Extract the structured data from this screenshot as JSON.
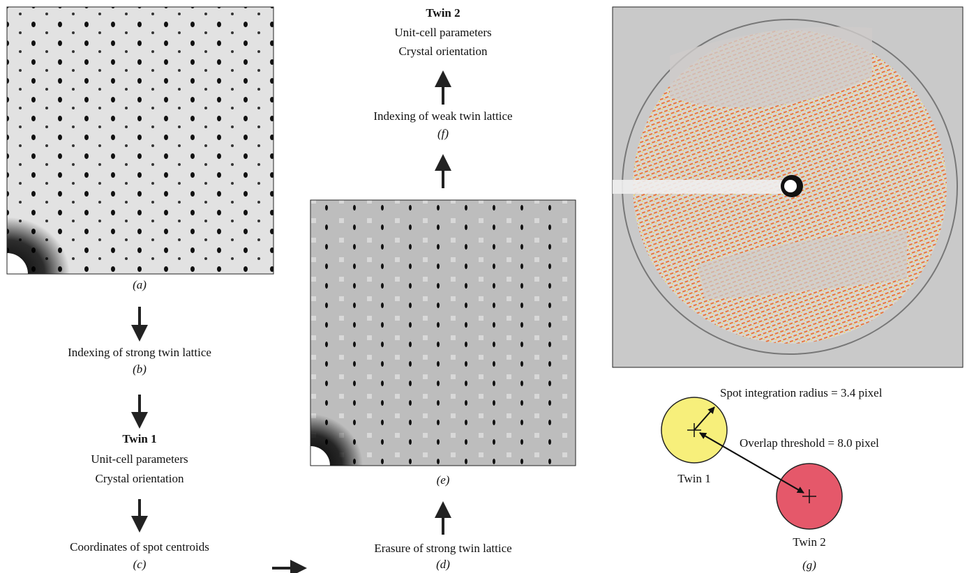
{
  "left_column": {
    "panel_a_label": "(a)",
    "step_b": {
      "text": "Indexing of strong twin lattice",
      "label": "(b)"
    },
    "twin1": {
      "title": "Twin 1",
      "line1": "Unit-cell parameters",
      "line2": "Crystal orientation"
    },
    "step_c": {
      "text": "Coordinates of spot centroids",
      "label": "(c)"
    }
  },
  "middle_column": {
    "twin2": {
      "title": "Twin 2",
      "line1": "Unit-cell parameters",
      "line2": "Crystal orientation"
    },
    "step_f": {
      "text": "Indexing of weak twin lattice",
      "label": "(f)"
    },
    "panel_e_label": "(e)",
    "step_d": {
      "text": "Erasure of strong twin lattice",
      "label": "(d)"
    }
  },
  "right_column": {
    "spot_radius": "Spot integration radius = 3.4 pixel",
    "overlap": "Overlap threshold = 8.0 pixel",
    "twin1_label": "Twin 1",
    "twin2_label": "Twin 2",
    "panel_g_label": "(g)"
  }
}
